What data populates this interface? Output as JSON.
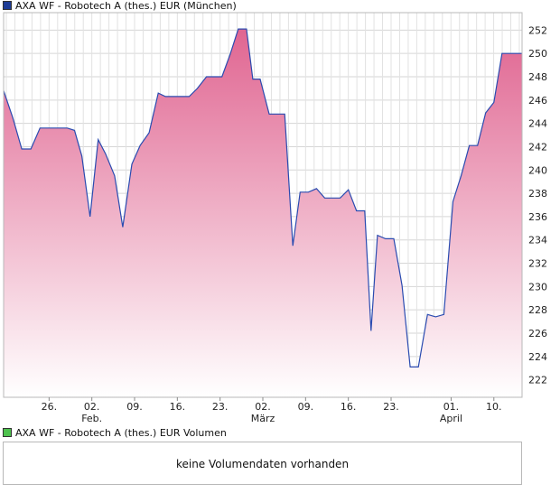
{
  "legend_price": {
    "label": "AXA WF - Robotech A (thes.) EUR (München)",
    "color": "#1e3c96"
  },
  "legend_volume": {
    "label": "AXA WF - Robotech A (thes.) EUR Volumen",
    "color": "#4ec24e"
  },
  "volume_panel": {
    "message": "keine Volumendaten vorhanden"
  },
  "chart_data": {
    "type": "area",
    "title": "AXA WF - Robotech A (thes.) EUR (München)",
    "xlabel": "",
    "ylabel": "",
    "ylim": [
      220.5,
      253.5
    ],
    "yticks": [
      222,
      224,
      226,
      228,
      230,
      232,
      234,
      236,
      238,
      240,
      242,
      244,
      246,
      248,
      250,
      252
    ],
    "x_range": [
      0,
      57
    ],
    "x_ticks": [
      {
        "x": 5,
        "label": "26."
      },
      {
        "x": 9.7,
        "label": "02.",
        "month": "Feb."
      },
      {
        "x": 14.4,
        "label": "09."
      },
      {
        "x": 19.1,
        "label": "16."
      },
      {
        "x": 23.8,
        "label": "23."
      },
      {
        "x": 28.5,
        "label": "02.",
        "month": "März"
      },
      {
        "x": 33.2,
        "label": "09."
      },
      {
        "x": 37.9,
        "label": "16."
      },
      {
        "x": 42.6,
        "label": "23."
      },
      {
        "x": 49.2,
        "label": "01.",
        "month": "April"
      },
      {
        "x": 53.9,
        "label": "10."
      }
    ],
    "series": [
      {
        "name": "AXA WF - Robotech A (thes.) EUR (München)",
        "line_color": "#2a4bb0",
        "fill_top": "#e06591",
        "fill_bottom": "#ffffff",
        "x": [
          0,
          1,
          2,
          3,
          4,
          5,
          6,
          7,
          7.8,
          8.6,
          9.5,
          10.4,
          11.2,
          12.2,
          13.1,
          14.1,
          15,
          16,
          17,
          17.8,
          18.6,
          19.5,
          20.4,
          21.3,
          22.3,
          23.1,
          24,
          24.9,
          25.8,
          26.7,
          27.4,
          28.2,
          29.2,
          30.1,
          30.9,
          31.8,
          32.6,
          33.5,
          34.4,
          35.3,
          36.2,
          37,
          37.9,
          38.8,
          39.7,
          40.4,
          41.1,
          42,
          42.9,
          43.8,
          44.7,
          45.6,
          46.6,
          47.5,
          48.4,
          49.4,
          50.3,
          51.2,
          52.1,
          53,
          53.9,
          54.8,
          55.6,
          56.4,
          57
        ],
        "values": [
          246.8,
          244.5,
          241.8,
          241.8,
          243.6,
          243.6,
          243.6,
          243.6,
          243.4,
          241.2,
          236.0,
          242.6,
          241.4,
          239.5,
          235.1,
          240.5,
          242.1,
          243.2,
          246.6,
          246.3,
          246.3,
          246.3,
          246.3,
          247.0,
          248.0,
          248.0,
          248.0,
          249.9,
          252.1,
          252.1,
          247.8,
          247.8,
          244.8,
          244.8,
          244.8,
          233.5,
          238.1,
          238.1,
          238.4,
          237.6,
          237.6,
          237.6,
          238.3,
          236.5,
          236.5,
          226.2,
          234.4,
          234.1,
          234.1,
          230.1,
          223.1,
          223.1,
          227.6,
          227.4,
          227.6,
          237.3,
          239.5,
          242.1,
          242.1,
          244.9,
          245.8,
          250.0,
          250.0,
          250.0,
          250.0
        ]
      }
    ],
    "grid": true
  }
}
